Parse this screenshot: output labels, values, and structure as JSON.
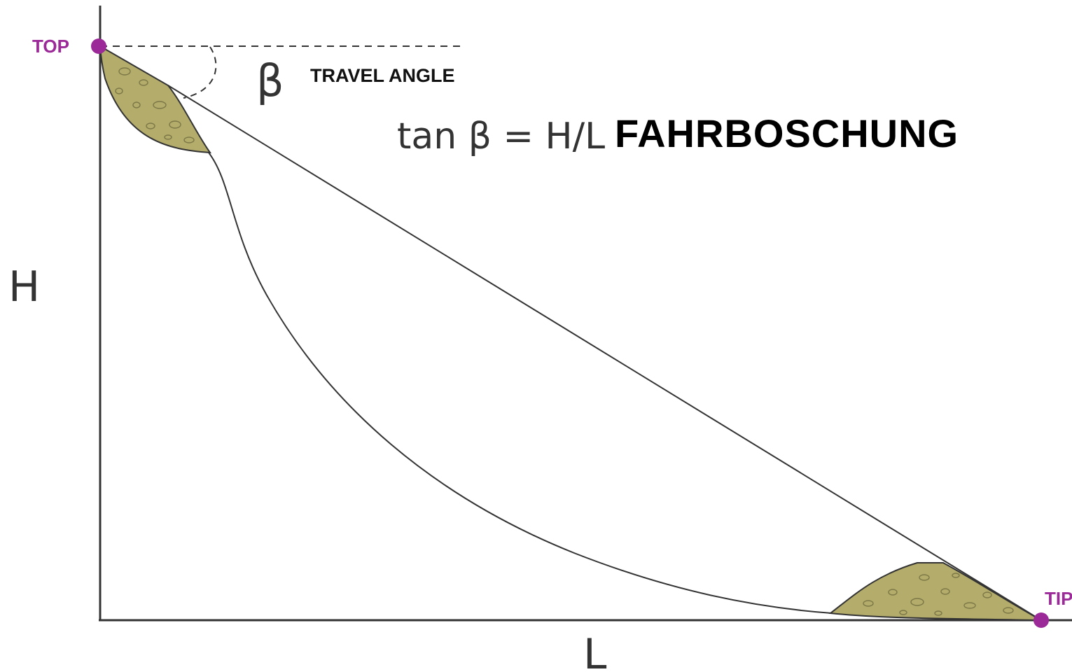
{
  "labels": {
    "top": "TOP",
    "tip": "TIP",
    "beta": "β",
    "travel_angle": "TRAVEL ANGLE",
    "formula": "tan β = H/L",
    "title": "FAHRBOSCHUNG",
    "height_axis": "H",
    "length_axis": "L"
  },
  "colors": {
    "point": "#9b2a98",
    "deposit_fill": "#b3ac6b",
    "line": "#333333"
  }
}
